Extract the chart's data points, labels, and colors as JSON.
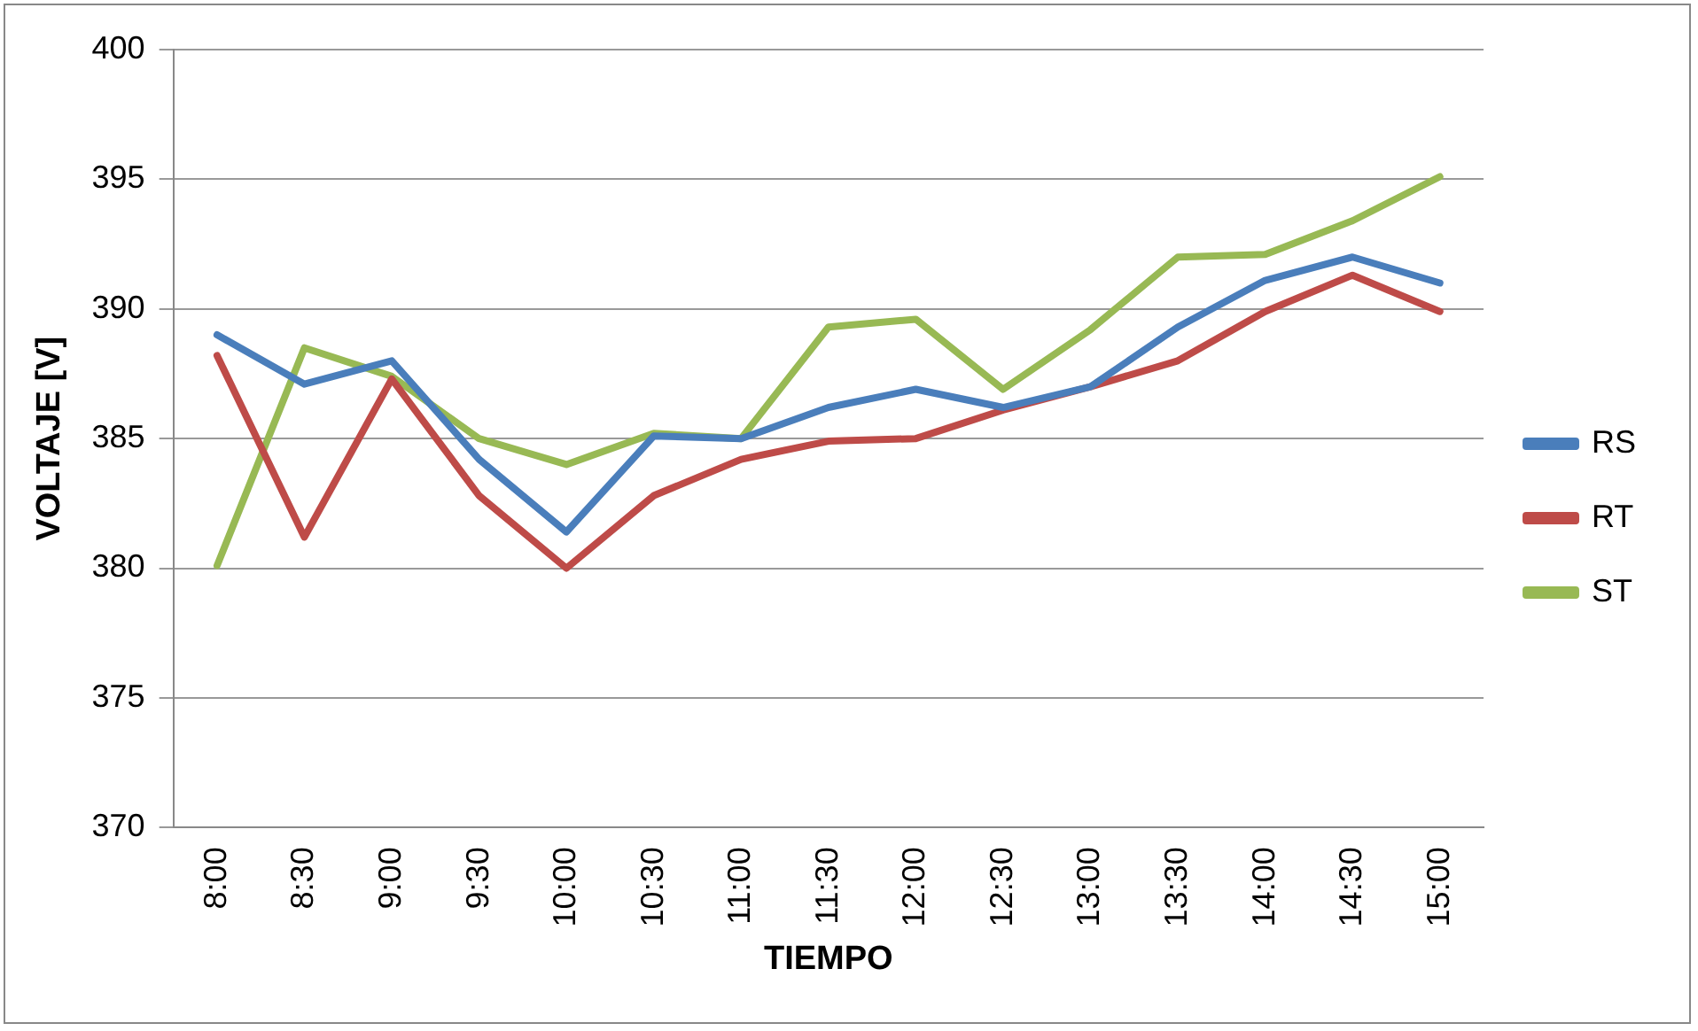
{
  "chart_data": {
    "type": "line",
    "xlabel": "TIEMPO",
    "ylabel": "VOLTAJE [V]",
    "categories": [
      "8:00",
      "8:30",
      "9:00",
      "9:30",
      "10:00",
      "10:30",
      "11:00",
      "11:30",
      "12:00",
      "12:30",
      "13:00",
      "13:30",
      "14:00",
      "14:30",
      "15:00"
    ],
    "series": [
      {
        "name": "RS",
        "color": "#4a7ebb",
        "values": [
          389.0,
          387.1,
          388.0,
          384.2,
          381.4,
          385.1,
          385.0,
          386.2,
          386.9,
          386.2,
          387.0,
          389.3,
          391.1,
          392.0,
          391.0
        ]
      },
      {
        "name": "RT",
        "color": "#be4b48",
        "values": [
          388.2,
          381.2,
          387.3,
          382.8,
          380.0,
          382.8,
          384.2,
          384.9,
          385.0,
          386.1,
          387.0,
          388.0,
          389.9,
          391.3,
          389.9
        ]
      },
      {
        "name": "ST",
        "color": "#98b954",
        "values": [
          380.1,
          388.5,
          387.4,
          385.0,
          384.0,
          385.2,
          385.0,
          389.3,
          389.6,
          386.9,
          389.2,
          392.0,
          392.1,
          393.4,
          395.1
        ]
      }
    ],
    "ylim": [
      370,
      400
    ],
    "yticks": [
      370,
      375,
      380,
      385,
      390,
      395,
      400
    ],
    "grid": "y",
    "legend": "right",
    "marker": "none",
    "line_style": "solid"
  }
}
